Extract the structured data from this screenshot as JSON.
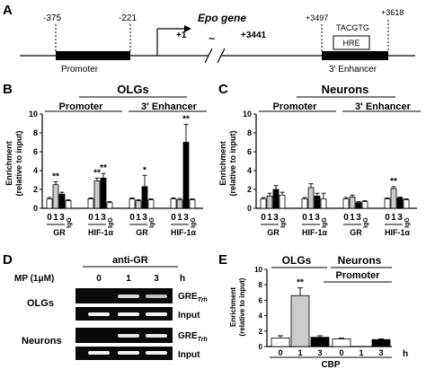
{
  "panel_a": {
    "letter": "A",
    "gene": "Epo gene",
    "pos_neg375": "-375",
    "pos_neg221": "-221",
    "pos_p1": "+1",
    "tilde": "~",
    "pos_p3441": "+3441",
    "pos_p3497": "+3497",
    "pos_p3618": "+3618",
    "seq": "TACGTG",
    "hre": "HRE",
    "promoter": "Promoter",
    "enhancer": "3' Enhancer"
  },
  "panel_b": {
    "letter": "B",
    "title": "OLGs",
    "region_promoter": "Promoter",
    "region_enhancer": "3' Enhancer",
    "ylabel_1": "Enrichment",
    "ylabel_2": "(relative to input)"
  },
  "panel_c": {
    "letter": "C",
    "title": "Neurons",
    "region_promoter": "Promoter",
    "region_enhancer": "3' Enhancer",
    "ylabel_1": "Enrichment",
    "ylabel_2": "(relative to input)"
  },
  "panel_d": {
    "letter": "D",
    "treatment": "MP (1μM)",
    "antibody": "anti-GR",
    "time_unit": "h",
    "lanes": [
      "0",
      "1",
      "3"
    ],
    "row_olgs": "OLGs",
    "row_neurons": "Neurons",
    "gre": "GRE",
    "gre_sub": "Trh",
    "input": "Input"
  },
  "panel_e": {
    "letter": "E",
    "group_olgs": "OLGs",
    "group_neurons": "Neurons",
    "region": "Promoter",
    "ylabel_1": "Enrichment",
    "ylabel_2": "(relative to input)",
    "time_unit": "h",
    "antibody": "CBP"
  },
  "chart_data": [
    {
      "type": "bar",
      "panel": "B",
      "title": "OLGs",
      "ylabel": "Enrichment (relative to input)",
      "ylim": [
        0,
        10
      ],
      "yticks": [
        "0",
        "2",
        "4",
        "6",
        "8",
        "10"
      ],
      "time_labels": [
        "0",
        "1",
        "3"
      ],
      "igg_label": "IgG",
      "antibody_labels": [
        "GR",
        "HIF-1α",
        "GR",
        "HIF-1α"
      ],
      "bar_colors": [
        "#ffffff",
        "#cccccc",
        "#000000",
        "#ffffff"
      ],
      "groups": [
        {
          "region": "Promoter",
          "antibody": "GR",
          "values": [
            1.0,
            2.5,
            1.5,
            0.8
          ],
          "errors": [
            0.15,
            0.3,
            0.2,
            0.1
          ],
          "sig": [
            "",
            "**",
            "",
            ""
          ]
        },
        {
          "region": "Promoter",
          "antibody": "HIF-1α",
          "values": [
            1.0,
            2.9,
            3.2,
            0.6
          ],
          "errors": [
            0.1,
            0.3,
            0.5,
            0.1
          ],
          "sig": [
            "",
            "**",
            "**",
            ""
          ]
        },
        {
          "region": "3' Enhancer",
          "antibody": "GR",
          "values": [
            1.0,
            0.8,
            2.3,
            0.9
          ],
          "errors": [
            0.1,
            0.1,
            1.2,
            0.1
          ],
          "sig": [
            "",
            "",
            "*",
            ""
          ]
        },
        {
          "region": "3' Enhancer",
          "antibody": "HIF-1α",
          "values": [
            1.0,
            0.9,
            7.0,
            0.9
          ],
          "errors": [
            0.1,
            0.15,
            1.9,
            0.1
          ],
          "sig": [
            "",
            "",
            "**",
            ""
          ]
        }
      ]
    },
    {
      "type": "bar",
      "panel": "C",
      "title": "Neurons",
      "ylabel": "Enrichment (relative to input)",
      "ylim": [
        0,
        10
      ],
      "yticks": [
        "0",
        "2",
        "4",
        "6",
        "8",
        "10"
      ],
      "time_labels": [
        "0",
        "1",
        "3"
      ],
      "igg_label": "IgG",
      "antibody_labels": [
        "GR",
        "HIF-1α",
        "GR",
        "HIF-1α"
      ],
      "bar_colors": [
        "#ffffff",
        "#cccccc",
        "#000000",
        "#ffffff"
      ],
      "groups": [
        {
          "region": "Promoter",
          "antibody": "GR",
          "values": [
            1.0,
            1.3,
            2.0,
            1.4
          ],
          "errors": [
            0.15,
            0.3,
            0.4,
            0.3
          ],
          "sig": [
            "",
            "",
            "",
            ""
          ]
        },
        {
          "region": "Promoter",
          "antibody": "HIF-1α",
          "values": [
            1.0,
            2.2,
            1.3,
            1.0
          ],
          "errors": [
            0.15,
            0.4,
            0.3,
            0.6
          ],
          "sig": [
            "",
            "",
            "",
            ""
          ]
        },
        {
          "region": "3' Enhancer",
          "antibody": "GR",
          "values": [
            1.0,
            1.2,
            0.6,
            0.7
          ],
          "errors": [
            0.15,
            0.2,
            0.1,
            0.1
          ],
          "sig": [
            "",
            "",
            "",
            ""
          ]
        },
        {
          "region": "3' Enhancer",
          "antibody": "HIF-1α",
          "values": [
            1.0,
            2.1,
            1.1,
            0.9
          ],
          "errors": [
            0.1,
            0.2,
            0.1,
            0.1
          ],
          "sig": [
            "",
            "**",
            "",
            ""
          ]
        }
      ]
    },
    {
      "type": "bar",
      "panel": "E",
      "ylabel": "Enrichment (relative to input)",
      "ylim": [
        0,
        10
      ],
      "yticks": [
        "0",
        "2",
        "4",
        "6",
        "8",
        "10"
      ],
      "time_labels": [
        "0",
        "1",
        "3",
        "0",
        "1",
        "3"
      ],
      "xlabel": "CBP",
      "bar_colors": [
        "#ffffff",
        "#cccccc",
        "#000000"
      ],
      "groups": [
        {
          "name": "OLGs",
          "values": [
            1.1,
            6.6,
            1.2
          ],
          "errors": [
            0.3,
            1.0,
            0.2
          ],
          "sig": [
            "",
            "**",
            ""
          ]
        },
        {
          "name": "Neurons",
          "values": [
            1.0,
            0.0,
            0.9
          ],
          "errors": [
            0.1,
            0.0,
            0.1
          ],
          "sig": [
            "",
            "",
            ""
          ]
        }
      ]
    }
  ]
}
